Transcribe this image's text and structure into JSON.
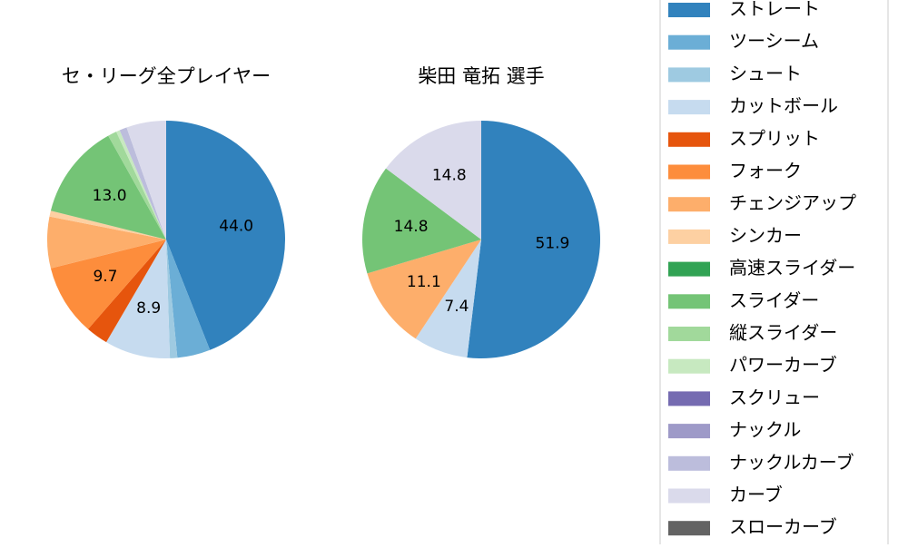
{
  "chart_data": {
    "type": "pie",
    "legend": "right",
    "categories": [
      "ストレート",
      "ツーシーム",
      "シュート",
      "カットボール",
      "スプリット",
      "フォーク",
      "チェンジアップ",
      "シンカー",
      "高速スライダー",
      "スライダー",
      "縦スライダー",
      "パワーカーブ",
      "スクリュー",
      "ナックル",
      "ナックルカーブ",
      "カーブ",
      "スローカーブ"
    ],
    "colors": [
      "#3182bd",
      "#6baed6",
      "#9ecae1",
      "#c6dbef",
      "#e6550d",
      "#fd8d3c",
      "#fdae6b",
      "#fdd0a2",
      "#31a354",
      "#74c476",
      "#a1d99b",
      "#c7e9c0",
      "#756bb1",
      "#9e9ac8",
      "#bcbddc",
      "#dadaeb",
      "#636363"
    ],
    "pies": [
      {
        "title": "セ・リーグ全プレイヤー",
        "values": [
          44.0,
          4.5,
          1.0,
          8.9,
          3.0,
          9.7,
          7.0,
          0.8,
          0,
          13.0,
          1.2,
          0.5,
          0,
          0,
          1.0,
          5.4,
          0
        ],
        "value_labels": [
          "44.0",
          null,
          null,
          "8.9",
          null,
          "9.7",
          null,
          null,
          null,
          "13.0",
          null,
          null,
          null,
          null,
          null,
          null,
          null
        ]
      },
      {
        "title": "柴田 竜拓  選手",
        "values": [
          51.9,
          0,
          0,
          7.4,
          0,
          0,
          11.1,
          0,
          0,
          14.8,
          0,
          0,
          0,
          0,
          0,
          14.8,
          0
        ],
        "value_labels": [
          "51.9",
          null,
          null,
          "7.4",
          null,
          null,
          "11.1",
          null,
          null,
          "14.8",
          null,
          null,
          null,
          null,
          null,
          "14.8",
          null
        ]
      }
    ]
  }
}
